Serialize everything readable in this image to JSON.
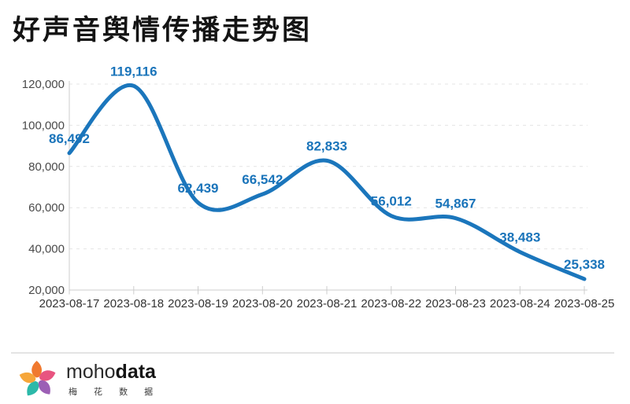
{
  "page": {
    "title": "好声音舆情传播走势图"
  },
  "chart_data": {
    "type": "line",
    "title": "好声音舆情传播走势图",
    "x": [
      "2023-08-17",
      "2023-08-18",
      "2023-08-19",
      "2023-08-20",
      "2023-08-21",
      "2023-08-22",
      "2023-08-23",
      "2023-08-24",
      "2023-08-25"
    ],
    "values": [
      86492,
      119116,
      62439,
      66542,
      82833,
      56012,
      54867,
      38483,
      25338
    ],
    "data_labels": [
      "86,492",
      "119,116",
      "62,439",
      "66,542",
      "82,833",
      "56,012",
      "54,867",
      "38,483",
      "25,338"
    ],
    "ylim": [
      20000,
      120000
    ],
    "yticks": [
      20000,
      40000,
      60000,
      80000,
      100000,
      120000
    ],
    "ytick_labels": [
      "20,000",
      "40,000",
      "60,000",
      "80,000",
      "100,000",
      "120,000"
    ],
    "smooth": true,
    "markers": false,
    "grid": "horizontal-dashed",
    "legend": "none",
    "colors": {
      "line": "#1b76bc",
      "data_label": "#1a74ba",
      "axis_line": "#cccccc",
      "grid_line": "#e4e4e4",
      "y_label": "#4a4a4a",
      "x_label": "#333333"
    }
  },
  "footer": {
    "brand": {
      "regular": "moho",
      "bold": "data",
      "subtext": "梅 花 数 据"
    },
    "pinwheel_colors": [
      "#f0792f",
      "#e85480",
      "#9c5fb5",
      "#2cb9a9",
      "#f6a63a"
    ]
  }
}
